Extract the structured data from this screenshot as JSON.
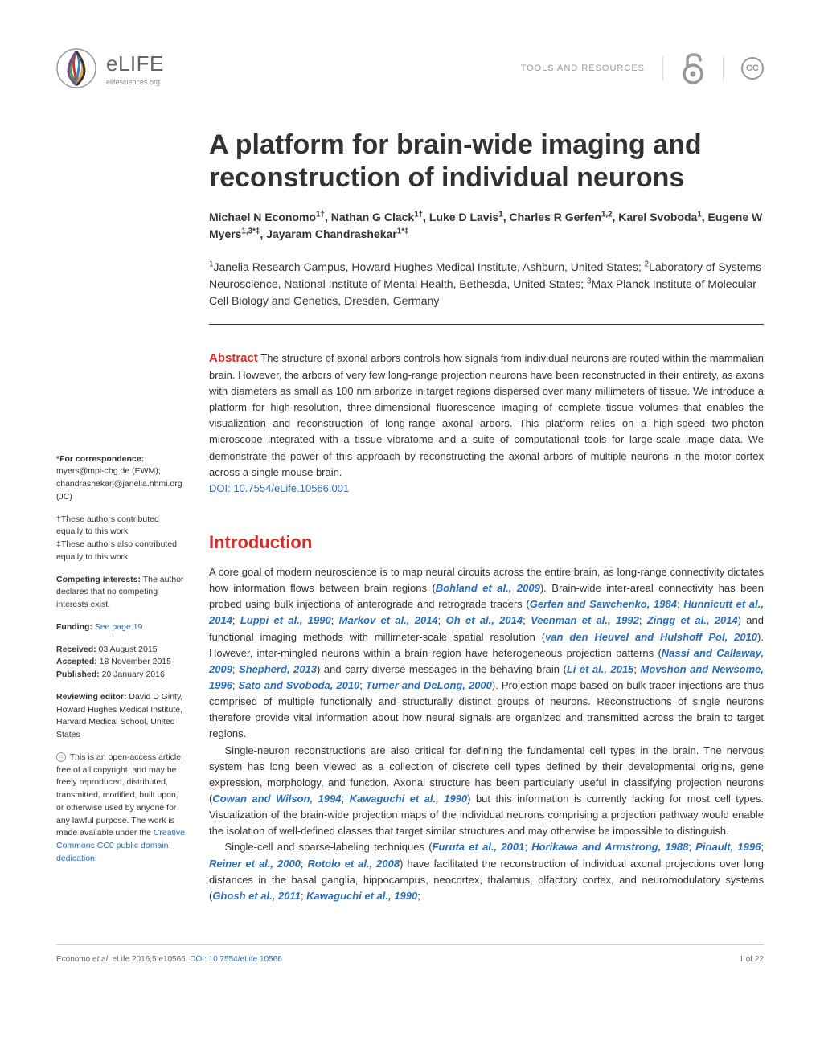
{
  "header": {
    "journal_name": "eLIFE",
    "journal_url": "elifesciences.org",
    "article_type": "TOOLS AND RESOURCES",
    "cc_label": "CC"
  },
  "title": "A platform for brain-wide imaging and reconstruction of individual neurons",
  "authors_html": "Michael N Economo<sup>1†</sup>, Nathan G Clack<sup>1†</sup>, Luke D Lavis<sup>1</sup>, Charles R Gerfen<sup>1,2</sup>, Karel Svoboda<sup>1</sup>, Eugene W Myers<sup>1,3*‡</sup>, Jayaram Chandrashekar<sup>1*‡</sup>",
  "affiliations_html": "<sup>1</sup>Janelia Research Campus, Howard Hughes Medical Institute, Ashburn, United States; <sup>2</sup>Laboratory of Systems Neuroscience, National Institute of Mental Health, Bethesda, United States; <sup>3</sup>Max Planck Institute of Molecular Cell Biology and Genetics, Dresden, Germany",
  "abstract": {
    "label": "Abstract",
    "text": "The structure of axonal arbors controls how signals from individual neurons are routed within the mammalian brain. However, the arbors of very few long-range projection neurons have been reconstructed in their entirety, as axons with diameters as small as 100 nm arborize in target regions dispersed over many millimeters of tissue. We introduce a platform for high-resolution, three-dimensional fluorescence imaging of complete tissue volumes that enables the visualization and reconstruction of long-range axonal arbors. This platform relies on a high-speed two-photon microscope integrated with a tissue vibratome and a suite of computational tools for large-scale image data. We demonstrate the power of this approach by reconstructing the axonal arbors of multiple neurons in the motor cortex across a single mouse brain.",
    "doi_label": "DOI: 10.7554/eLife.10566.001"
  },
  "sidebar": {
    "correspondence_label": "*For correspondence:",
    "correspondence_text": " myers@mpi-cbg.de (EWM); chandrashekarj@janelia.hhmi.org (JC)",
    "dagger": "†These authors contributed equally to this work",
    "ddagger": "‡These authors also contributed equally to this work",
    "competing_label": "Competing interests:",
    "competing_text": " The author declares that no competing interests exist.",
    "funding_label": "Funding:",
    "funding_link": "See page 19",
    "received_label": "Received:",
    "received": " 03 August 2015",
    "accepted_label": "Accepted:",
    "accepted": " 18 November 2015",
    "published_label": "Published:",
    "published": " 20 January 2016",
    "editor_label": "Reviewing editor:",
    "editor": " David D Ginty, Howard Hughes Medical Institute, Harvard Medical School, United States",
    "license_text": "This is an open-access article, free of all copyright, and may be freely reproduced, distributed, transmitted, modified, built upon, or otherwise used by anyone for any lawful purpose. The work is made available under the ",
    "license_link": "Creative Commons CC0 public domain dedication."
  },
  "intro": {
    "heading": "Introduction",
    "p1_a": "A core goal of modern neuroscience is to map neural circuits across the entire brain, as long-range connectivity dictates how information flows between brain regions (",
    "c1": "Bohland et al., 2009",
    "p1_b": "). Brain-wide inter-areal connectivity has been probed using bulk injections of anterograde and retrograde tracers (",
    "c2": "Gerfen and Sawchenko, 1984",
    "c3": "Hunnicutt et al., 2014",
    "c4": "Luppi et al., 1990",
    "c5": "Markov et al., 2014",
    "c6": "Oh et al., 2014",
    "c7": "Veenman et al., 1992",
    "c8": "Zingg et al., 2014",
    "p1_c": ") and functional imaging methods with millimeter-scale spatial resolution (",
    "c9": "van den Heuvel and Hulshoff Pol, 2010",
    "p1_d": "). However, inter-mingled neurons within a brain region have heterogeneous projection patterns (",
    "c10": "Nassi and Callaway, 2009",
    "c11": "Shepherd, 2013",
    "p1_e": ") and carry diverse messages in the behaving brain (",
    "c12": "Li et al., 2015",
    "c13": "Movshon and Newsome, 1996",
    "c14": "Sato and Svoboda, 2010",
    "c15": "Turner and DeLong, 2000",
    "p1_f": "). Projection maps based on bulk tracer injections are thus comprised of multiple functionally and structurally distinct groups of neurons. Reconstructions of single neurons therefore provide vital information about how neural signals are organized and transmitted across the brain to target regions.",
    "p2_a": "Single-neuron reconstructions are also critical for defining the fundamental cell types in the brain. The nervous system has long been viewed as a collection of discrete cell types defined by their developmental origins, gene expression, morphology, and function. Axonal structure has been particularly useful in classifying projection neurons (",
    "c16": "Cowan and Wilson, 1994",
    "c17": "Kawaguchi et al., 1990",
    "p2_b": ") but this information is currently lacking for most cell types. Visualization of the brain-wide projection maps of the individual neurons comprising a projection pathway would enable the isolation of well-defined classes that target similar structures and may otherwise be impossible to distinguish.",
    "p3_a": "Single-cell and sparse-labeling techniques (",
    "c18": "Furuta et al., 2001",
    "c19": "Horikawa and Armstrong, 1988",
    "c20": "Pinault, 1996",
    "c21": "Reiner et al., 2000",
    "c22": "Rotolo et al., 2008",
    "p3_b": ") have facilitated the reconstruction of individual axonal projections over long distances in the basal ganglia, hippocampus, neocortex, thalamus, olfactory cortex, and neuromodulatory systems (",
    "c23": "Ghosh et al., 2011",
    "c24": "Kawaguchi et al., 1990",
    "semi": "; "
  },
  "footer": {
    "citation_prefix": "Economo ",
    "citation_etal": "et al",
    "citation_mid": ". eLife 2016;5:e10566. ",
    "doi": "DOI: 10.7554/eLife.10566",
    "page": "1 of 22"
  },
  "colors": {
    "accent": "#d32a2a",
    "link": "#2a6ebb"
  }
}
